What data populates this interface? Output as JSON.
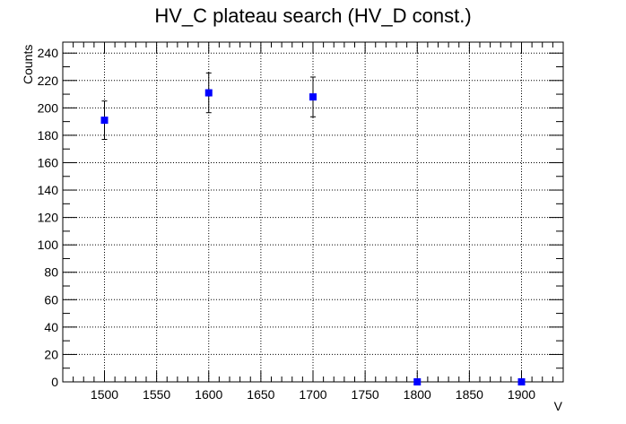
{
  "chart_data": {
    "type": "scatter",
    "title": "HV_C plateau search (HV_D const.)",
    "xlabel": "V",
    "ylabel": "Counts",
    "xlim": [
      1460,
      1940
    ],
    "ylim": [
      0,
      248
    ],
    "x_ticks": [
      1500,
      1550,
      1600,
      1650,
      1700,
      1750,
      1800,
      1850,
      1900
    ],
    "y_ticks": [
      0,
      20,
      40,
      60,
      80,
      100,
      120,
      140,
      160,
      180,
      200,
      220,
      240
    ],
    "grid": true,
    "marker_color": "#0000ff",
    "x": [
      1500,
      1600,
      1700,
      1800,
      1900
    ],
    "y": [
      191,
      211,
      208,
      0,
      0
    ],
    "yerr": [
      14,
      14.5,
      14.5,
      0,
      0
    ]
  }
}
